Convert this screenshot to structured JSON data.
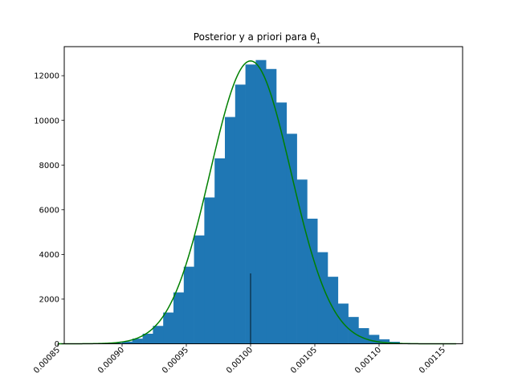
{
  "chart_data": {
    "type": "bar",
    "title": "Posterior y a priori para θ",
    "title_subscript": "1",
    "xlabel": "",
    "ylabel": "",
    "xlim": [
      0.000855,
      0.001165
    ],
    "ylim": [
      0,
      13300
    ],
    "x_ticks": [
      0.00085,
      0.0009,
      0.00095,
      0.001,
      0.00105,
      0.0011,
      0.00115
    ],
    "x_tick_labels": [
      "0.00085",
      "0.00090",
      "0.00095",
      "0.00100",
      "0.00105",
      "0.00110",
      "0.00115"
    ],
    "y_ticks": [
      0,
      2000,
      4000,
      6000,
      8000,
      10000,
      12000
    ],
    "y_tick_labels": [
      "0",
      "2000",
      "4000",
      "6000",
      "8000",
      "10000",
      "12000"
    ],
    "grid": false,
    "histogram": {
      "color": "#1f77b4",
      "bin_edges": [
        0.000868,
        0.000876,
        0.000884,
        0.000892,
        0.0009,
        0.000908,
        0.000916,
        0.000924,
        0.000932,
        0.00094,
        0.000948,
        0.000956,
        0.000964,
        0.000972,
        0.00098,
        0.000988,
        0.000996,
        0.001004,
        0.001012,
        0.00102,
        0.001028,
        0.001036,
        0.001044,
        0.001052,
        0.00106,
        0.001068,
        0.001076,
        0.001084,
        0.001092,
        0.0011,
        0.001108,
        0.001116,
        0.001124,
        0.001132
      ],
      "counts": [
        2,
        5,
        15,
        40,
        100,
        230,
        450,
        800,
        1400,
        2300,
        3450,
        4850,
        6550,
        8300,
        10150,
        11600,
        12500,
        12700,
        12300,
        10800,
        9400,
        7350,
        5600,
        4100,
        3000,
        1800,
        1200,
        700,
        400,
        200,
        90,
        35,
        10
      ]
    },
    "prior_curve": {
      "color": "#008000",
      "type": "normal",
      "mean": 0.001,
      "std": 3.15e-05,
      "peak": 12660,
      "x_range": [
        0.00085,
        0.00116
      ]
    },
    "reference_line": {
      "color": "#000000",
      "x": 0.001,
      "y_top": 3150
    }
  }
}
